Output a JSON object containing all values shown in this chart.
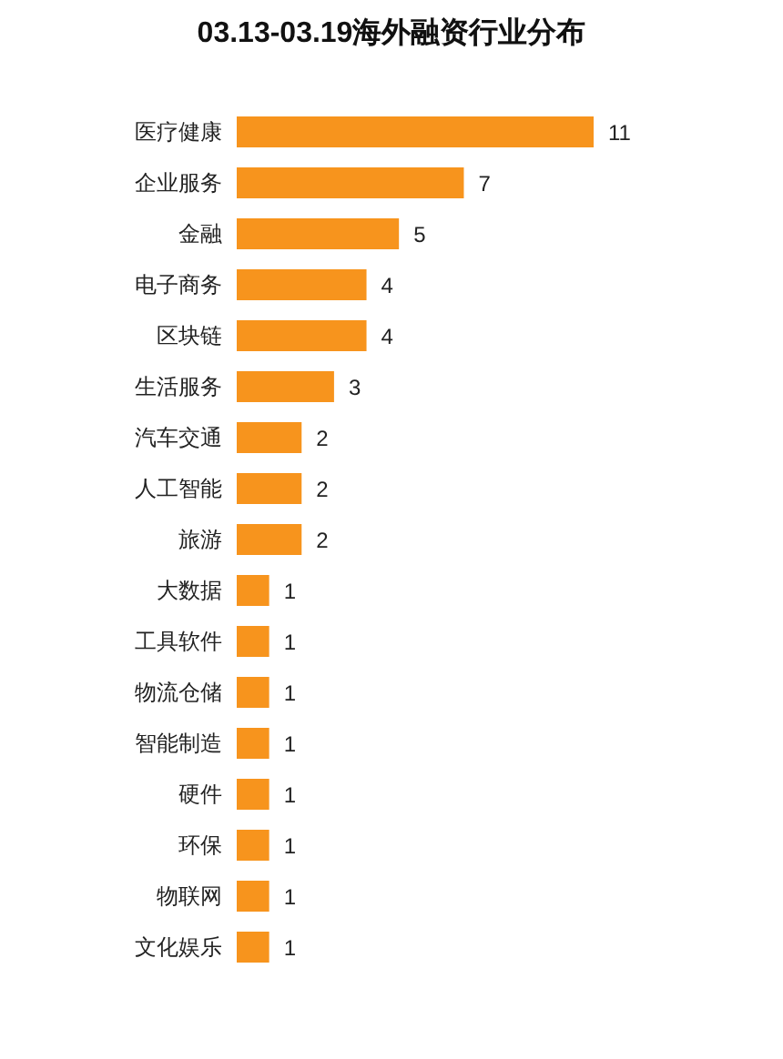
{
  "chart_data": {
    "type": "bar",
    "orientation": "horizontal",
    "title": "03.13-03.19海外融资行业分布",
    "categories": [
      "医疗健康",
      "企业服务",
      "金融",
      "电子商务",
      "区块链",
      "生活服务",
      "汽车交通",
      "人工智能",
      "旅游",
      "大数据",
      "工具软件",
      "物流仓储",
      "智能制造",
      "硬件",
      "环保",
      "物联网",
      "文化娱乐"
    ],
    "values": [
      11,
      7,
      5,
      4,
      4,
      3,
      2,
      2,
      2,
      1,
      1,
      1,
      1,
      1,
      1,
      1,
      1
    ],
    "color": "#f7941d",
    "data_labels": true,
    "grid": false,
    "legend": false
  }
}
